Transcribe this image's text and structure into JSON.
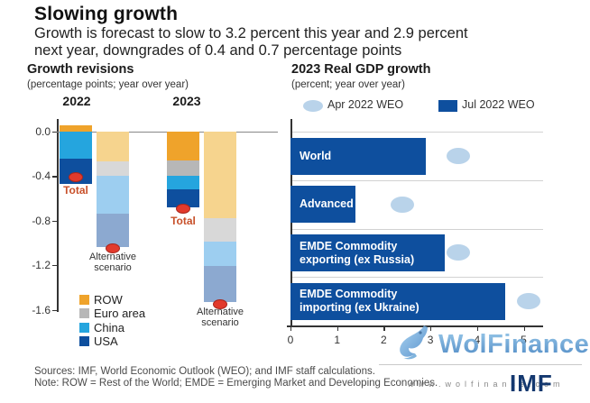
{
  "header": {
    "title": "Slowing growth",
    "subtitle_line1": "Growth is forecast to slow to 3.2 percent this year and 2.9 percent",
    "subtitle_line2": "next year, downgrades of 0.4 and 0.7 percentage points"
  },
  "chart_data": [
    {
      "type": "bar",
      "variant": "stacked-contribution-bars",
      "title": "Growth revisions",
      "subtitle": "(percentage points; year over year)",
      "groups": [
        "2022",
        "2023"
      ],
      "y_ticks": [
        "0.0",
        "-0.4",
        "-0.8",
        "-1.2",
        "-1.6"
      ],
      "ylim": [
        -1.7,
        0.1
      ],
      "grid": "zero-line-only",
      "marker_color": "#E23A2C",
      "total_label_color": "#C8502A",
      "legend_position": "bottom-left",
      "legend": [
        {
          "name": "ROW",
          "color": "#EFA32B",
          "alt_color": "#F6D48E"
        },
        {
          "name": "Euro area",
          "color": "#B7B7B7",
          "alt_color": "#D8D8D8"
        },
        {
          "name": "China",
          "color": "#25A5DE",
          "alt_color": "#9DCEF0"
        },
        {
          "name": "USA",
          "color": "#0E4F9E",
          "alt_color": "#8CA9D0"
        }
      ],
      "bars": [
        {
          "group": "2022",
          "scenario": "baseline",
          "label": "Total",
          "total": -0.41,
          "segments": [
            {
              "name": "ROW",
              "value": 0.06
            },
            {
              "name": "Euro area",
              "value": 0
            },
            {
              "name": "China",
              "value": -0.24
            },
            {
              "name": "USA",
              "value": -0.23
            }
          ]
        },
        {
          "group": "2022",
          "scenario": "alternative",
          "label": "Alternative scenario",
          "total": -1.05,
          "segments": [
            {
              "name": "ROW",
              "value": -0.27
            },
            {
              "name": "Euro area",
              "value": -0.13
            },
            {
              "name": "China",
              "value": -0.34
            },
            {
              "name": "USA",
              "value": -0.3
            }
          ]
        },
        {
          "group": "2023",
          "scenario": "baseline",
          "label": "Total",
          "total": -0.69,
          "segments": [
            {
              "name": "ROW",
              "value": -0.26
            },
            {
              "name": "Euro area",
              "value": -0.14
            },
            {
              "name": "China",
              "value": -0.12
            },
            {
              "name": "USA",
              "value": -0.16
            }
          ]
        },
        {
          "group": "2023",
          "scenario": "alternative",
          "label": "Alternative scenario",
          "total": -1.55,
          "segments": [
            {
              "name": "ROW",
              "value": -0.78
            },
            {
              "name": "Euro area",
              "value": -0.21
            },
            {
              "name": "China",
              "value": -0.22
            },
            {
              "name": "USA",
              "value": -0.32
            }
          ]
        }
      ]
    },
    {
      "type": "bar",
      "orientation": "horizontal",
      "title": "2023 Real GDP growth",
      "subtitle": "(percent; year over year)",
      "x_ticks": [
        0,
        1,
        2,
        3,
        4,
        5
      ],
      "xlim": [
        0,
        5.4
      ],
      "grid": "row-separators",
      "legend_position": "top",
      "legend": [
        {
          "name": "Apr 2022 WEO",
          "shape": "ellipse",
          "color": "#B9D3EA"
        },
        {
          "name": "Jul 2022 WEO",
          "shape": "square",
          "color": "#0E4F9E"
        }
      ],
      "rows": [
        {
          "label": "World",
          "jul_2022_weo": 2.9,
          "apr_2022_weo": 3.6
        },
        {
          "label": "Advanced",
          "jul_2022_weo": 1.4,
          "apr_2022_weo": 2.4
        },
        {
          "label": "EMDE Commodity exporting (ex Russia)",
          "jul_2022_weo": 3.3,
          "apr_2022_weo": 3.6
        },
        {
          "label": "EMDE Commodity importing (ex Ukraine)",
          "jul_2022_weo": 4.6,
          "apr_2022_weo": 5.1
        }
      ]
    }
  ],
  "footer": {
    "sources": "Sources: IMF, World Economic Outlook (WEO); and IMF staff calculations.",
    "note": "Note: ROW = Rest of the World; EMDE = Emerging Market and Developing Economies."
  },
  "watermark": {
    "brand": "WolFinance",
    "url": "www.wolfinance.com",
    "publisher_logo": "IMF"
  }
}
